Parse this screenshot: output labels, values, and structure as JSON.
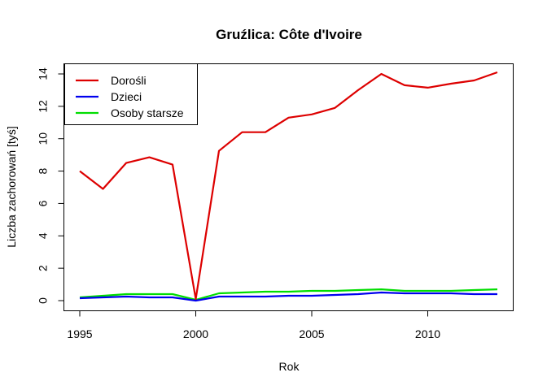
{
  "chart_data": {
    "type": "line",
    "title": "Gruźlica: Côte d'Ivoire",
    "xlabel": "Rok",
    "ylabel": "Liczba zachorowań [tyś]",
    "xlim": [
      1995,
      2013
    ],
    "ylim": [
      0,
      14
    ],
    "xticks": [
      1995,
      2000,
      2005,
      2010
    ],
    "yticks": [
      0,
      2,
      4,
      6,
      8,
      10,
      12,
      14
    ],
    "grid": false,
    "legend_position": "top-left",
    "x": [
      1995,
      1996,
      1997,
      1998,
      1999,
      2000,
      2001,
      2002,
      2003,
      2004,
      2005,
      2006,
      2007,
      2008,
      2009,
      2010,
      2011,
      2012,
      2013
    ],
    "series": [
      {
        "name": "Dorośli",
        "color": "#dd0000",
        "values": [
          8.0,
          6.9,
          8.5,
          8.85,
          8.4,
          0.1,
          9.25,
          10.4,
          10.4,
          11.3,
          11.5,
          11.9,
          13.0,
          14.0,
          13.3,
          13.15,
          13.4,
          13.6,
          14.1
        ]
      },
      {
        "name": "Dzieci",
        "color": "#0000ee",
        "values": [
          0.15,
          0.2,
          0.25,
          0.2,
          0.2,
          0.0,
          0.25,
          0.25,
          0.25,
          0.3,
          0.3,
          0.35,
          0.4,
          0.5,
          0.45,
          0.45,
          0.45,
          0.4,
          0.4
        ]
      },
      {
        "name": "Osoby starsze",
        "color": "#00dd00",
        "values": [
          0.2,
          0.3,
          0.4,
          0.4,
          0.4,
          0.05,
          0.45,
          0.5,
          0.55,
          0.55,
          0.6,
          0.6,
          0.65,
          0.7,
          0.6,
          0.6,
          0.6,
          0.65,
          0.7
        ]
      }
    ]
  }
}
